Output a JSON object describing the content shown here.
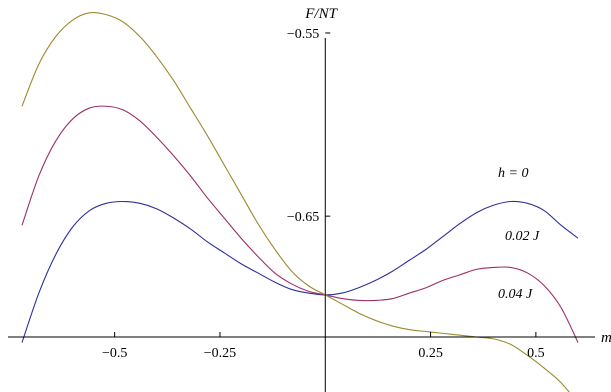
{
  "chart_data": {
    "type": "line",
    "title": "",
    "xlabel": "m",
    "ylabel": "F/NT",
    "xlim": [
      -0.72,
      0.6
    ],
    "ylim": [
      -0.746,
      -0.532
    ],
    "x_ticks": [
      -0.5,
      -0.25,
      0.25,
      0.5
    ],
    "x_tick_labels": [
      "−0.5",
      "−0.25",
      "0.25",
      "0.5"
    ],
    "y_ticks": [
      -0.55,
      -0.65
    ],
    "y_tick_labels": [
      "−0.55",
      "−0.65"
    ],
    "grid": false,
    "legend": "none",
    "series": [
      {
        "name": "h = 0",
        "color": "#2f2f9c",
        "x": [
          -0.72,
          -0.68,
          -0.64,
          -0.6,
          -0.56,
          -0.52,
          -0.48,
          -0.44,
          -0.4,
          -0.36,
          -0.32,
          -0.28,
          -0.24,
          -0.2,
          -0.16,
          -0.12,
          -0.08,
          -0.04,
          0.0,
          0.04,
          0.08,
          0.12,
          0.16,
          0.2,
          0.24,
          0.28,
          0.32,
          0.36,
          0.4,
          0.44,
          0.48,
          0.52,
          0.56,
          0.6
        ],
        "y": [
          -0.719,
          -0.692,
          -0.671,
          -0.656,
          -0.647,
          -0.643,
          -0.642,
          -0.643,
          -0.646,
          -0.651,
          -0.657,
          -0.664,
          -0.67,
          -0.676,
          -0.681,
          -0.686,
          -0.69,
          -0.692,
          -0.693,
          -0.692,
          -0.689,
          -0.685,
          -0.68,
          -0.674,
          -0.668,
          -0.661,
          -0.654,
          -0.648,
          -0.644,
          -0.642,
          -0.643,
          -0.647,
          -0.655,
          -0.662
        ]
      },
      {
        "name": "0.02 J",
        "color": "#9c2f6a",
        "x": [
          -0.72,
          -0.68,
          -0.64,
          -0.6,
          -0.56,
          -0.52,
          -0.48,
          -0.44,
          -0.4,
          -0.36,
          -0.32,
          -0.28,
          -0.24,
          -0.2,
          -0.16,
          -0.12,
          -0.08,
          -0.04,
          0.0,
          0.04,
          0.08,
          0.12,
          0.16,
          0.2,
          0.24,
          0.28,
          0.32,
          0.36,
          0.4,
          0.44,
          0.48,
          0.52,
          0.56,
          0.6
        ],
        "y": [
          -0.655,
          -0.628,
          -0.609,
          -0.597,
          -0.591,
          -0.59,
          -0.592,
          -0.598,
          -0.607,
          -0.617,
          -0.628,
          -0.64,
          -0.651,
          -0.662,
          -0.672,
          -0.681,
          -0.687,
          -0.691,
          -0.693,
          -0.695,
          -0.696,
          -0.696,
          -0.695,
          -0.692,
          -0.689,
          -0.685,
          -0.682,
          -0.679,
          -0.678,
          -0.678,
          -0.681,
          -0.688,
          -0.7,
          -0.719
        ]
      },
      {
        "name": "0.04 J",
        "color": "#9c8a2f",
        "x": [
          -0.72,
          -0.68,
          -0.64,
          -0.6,
          -0.56,
          -0.52,
          -0.48,
          -0.44,
          -0.4,
          -0.36,
          -0.32,
          -0.28,
          -0.24,
          -0.2,
          -0.16,
          -0.12,
          -0.08,
          -0.04,
          0.0,
          0.04,
          0.08,
          0.12,
          0.16,
          0.2,
          0.24,
          0.28,
          0.32,
          0.36,
          0.4,
          0.44,
          0.48,
          0.52,
          0.56,
          0.6
        ],
        "y": [
          -0.59,
          -0.567,
          -0.552,
          -0.543,
          -0.539,
          -0.54,
          -0.544,
          -0.552,
          -0.563,
          -0.576,
          -0.591,
          -0.606,
          -0.622,
          -0.638,
          -0.654,
          -0.668,
          -0.68,
          -0.688,
          -0.693,
          -0.698,
          -0.703,
          -0.707,
          -0.71,
          -0.712,
          -0.713,
          -0.714,
          -0.715,
          -0.716,
          -0.717,
          -0.72,
          -0.726,
          -0.733,
          -0.741,
          -0.752
        ]
      }
    ],
    "annotations": [
      {
        "text": "h = 0",
        "series": 0
      },
      {
        "text": "0.02 J",
        "series": 1
      },
      {
        "text": "0.04 J",
        "series": 2
      }
    ]
  }
}
